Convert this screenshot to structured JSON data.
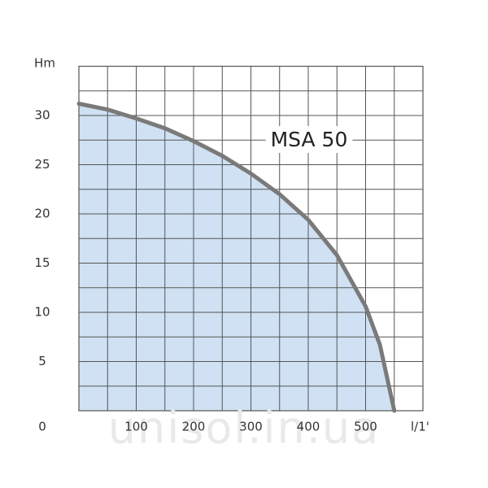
{
  "chart_data": {
    "type": "area",
    "annotation": "MSA 50",
    "ylabel": "Hm",
    "xlabel": "l/1'",
    "watermark": "unisol.in.ua",
    "x": [
      0,
      50,
      100,
      150,
      200,
      250,
      300,
      350,
      400,
      450,
      500,
      525,
      550
    ],
    "values": [
      31.2,
      30.6,
      29.7,
      28.7,
      27.4,
      25.9,
      24.1,
      22,
      19.4,
      15.8,
      10.6,
      6.7,
      0
    ],
    "color": "#7a7a7a",
    "fill": "#cfe1f3",
    "xlim": [
      0,
      600
    ],
    "xticks": [
      100,
      200,
      300,
      400,
      500
    ],
    "ylim": [
      0,
      35
    ],
    "yticks": [
      0,
      5,
      10,
      15,
      20,
      25,
      30
    ],
    "grid": true
  }
}
